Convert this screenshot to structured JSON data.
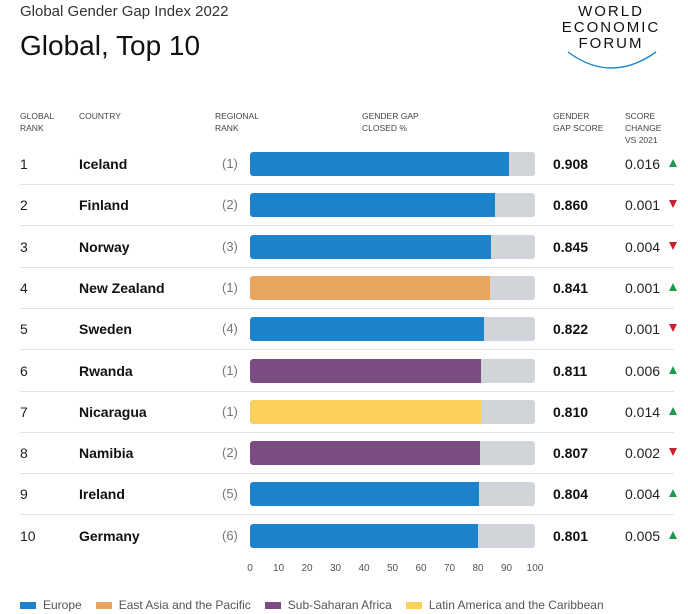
{
  "header": {
    "supertitle": "Global Gender Gap Index 2022",
    "title": "Global, Top 10"
  },
  "logo": {
    "lines": [
      "WORLD",
      "ECONOMIC",
      "FORUM"
    ]
  },
  "columns": {
    "rank": [
      "GLOBAL",
      "RANK"
    ],
    "country": [
      "COUNTRY"
    ],
    "regional": [
      "REGIONAL",
      "RANK"
    ],
    "closed": [
      "GENDER GAP",
      "CLOSED %"
    ],
    "score": [
      "GENDER",
      "GAP SCORE"
    ],
    "change": [
      "SCORE",
      "CHANGE",
      "VS 2021"
    ]
  },
  "colors": {
    "Europe": "#1c82cc",
    "East Asia and the Pacific": "#e8a55f",
    "Sub-Saharan Africa": "#7a4c82",
    "Latin America and the Caribbean": "#fbd15b",
    "track": "#d1d4d8",
    "up": "#1f9a4f",
    "down": "#c8202f"
  },
  "chart_data": {
    "type": "bar",
    "orientation": "horizontal",
    "xlim": [
      0,
      100
    ],
    "xticks": [
      0,
      10,
      20,
      30,
      40,
      50,
      60,
      70,
      80,
      90,
      100
    ],
    "legend_position": "bottom",
    "legend": [
      "Europe",
      "East Asia and the Pacific",
      "Sub-Saharan Africa",
      "Latin America and the Caribbean"
    ],
    "rows": [
      {
        "rank": "1",
        "country": "Iceland",
        "regional_rank": "(1)",
        "region": "Europe",
        "closed_pct": 90.8,
        "score": "0.908",
        "change": "0.016",
        "direction": "up"
      },
      {
        "rank": "2",
        "country": "Finland",
        "regional_rank": "(2)",
        "region": "Europe",
        "closed_pct": 86.0,
        "score": "0.860",
        "change": "0.001",
        "direction": "down"
      },
      {
        "rank": "3",
        "country": "Norway",
        "regional_rank": "(3)",
        "region": "Europe",
        "closed_pct": 84.5,
        "score": "0.845",
        "change": "0.004",
        "direction": "down"
      },
      {
        "rank": "4",
        "country": "New Zealand",
        "regional_rank": "(1)",
        "region": "East Asia and the Pacific",
        "closed_pct": 84.1,
        "score": "0.841",
        "change": "0.001",
        "direction": "up"
      },
      {
        "rank": "5",
        "country": "Sweden",
        "regional_rank": "(4)",
        "region": "Europe",
        "closed_pct": 82.2,
        "score": "0.822",
        "change": "0.001",
        "direction": "down"
      },
      {
        "rank": "6",
        "country": "Rwanda",
        "regional_rank": "(1)",
        "region": "Sub-Saharan Africa",
        "closed_pct": 81.1,
        "score": "0.811",
        "change": "0.006",
        "direction": "up"
      },
      {
        "rank": "7",
        "country": "Nicaragua",
        "regional_rank": "(1)",
        "region": "Latin America and the Caribbean",
        "closed_pct": 81.0,
        "score": "0.810",
        "change": "0.014",
        "direction": "up"
      },
      {
        "rank": "8",
        "country": "Namibia",
        "regional_rank": "(2)",
        "region": "Sub-Saharan Africa",
        "closed_pct": 80.7,
        "score": "0.807",
        "change": "0.002",
        "direction": "down"
      },
      {
        "rank": "9",
        "country": "Ireland",
        "regional_rank": "(5)",
        "region": "Europe",
        "closed_pct": 80.4,
        "score": "0.804",
        "change": "0.004",
        "direction": "up"
      },
      {
        "rank": "10",
        "country": "Germany",
        "regional_rank": "(6)",
        "region": "Europe",
        "closed_pct": 80.1,
        "score": "0.801",
        "change": "0.005",
        "direction": "up"
      }
    ]
  }
}
